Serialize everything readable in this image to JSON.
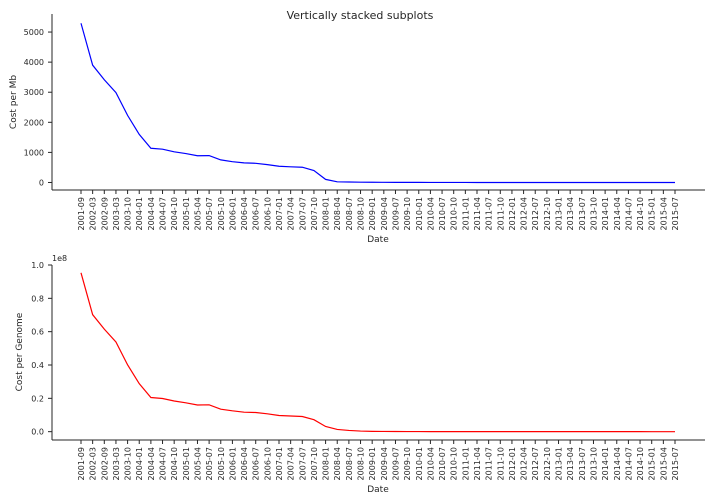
{
  "figure": {
    "title": "Vertically stacked subplots"
  },
  "chart_data": [
    {
      "type": "line",
      "xlabel": "Date",
      "ylabel": "Cost per Mb",
      "ylim": [
        -250,
        5600
      ],
      "yticks": [
        0,
        1000,
        2000,
        3000,
        4000,
        5000
      ],
      "ytick_labels": [
        "0",
        "1000",
        "2000",
        "3000",
        "4000",
        "5000"
      ],
      "color": "#0000ff",
      "grid": false,
      "x": [
        "2001-09",
        "2002-03",
        "2002-09",
        "2003-03",
        "2003-10",
        "2004-01",
        "2004-04",
        "2004-07",
        "2004-10",
        "2005-01",
        "2005-04",
        "2005-07",
        "2005-10",
        "2006-01",
        "2006-04",
        "2006-07",
        "2006-10",
        "2007-01",
        "2007-04",
        "2007-07",
        "2007-10",
        "2008-01",
        "2008-04",
        "2008-07",
        "2008-10",
        "2009-01",
        "2009-04",
        "2009-07",
        "2009-10",
        "2010-01",
        "2010-04",
        "2010-07",
        "2010-10",
        "2011-01",
        "2011-04",
        "2011-07",
        "2011-10",
        "2012-01",
        "2012-04",
        "2012-07",
        "2012-10",
        "2013-01",
        "2013-04",
        "2013-07",
        "2013-10",
        "2014-01",
        "2014-04",
        "2014-07",
        "2014-10",
        "2015-01",
        "2015-04",
        "2015-07"
      ],
      "values": [
        5292,
        3899,
        3414,
        2987,
        2230,
        1598,
        1137,
        1107,
        1020,
        961,
        889,
        893,
        751,
        692,
        652,
        637,
        593,
        539,
        520,
        507,
        397,
        103,
        22,
        16,
        10,
        7.4,
        6.0,
        4.3,
        3.0,
        2.6,
        1.6,
        1.2,
        0.9,
        0.5,
        0.4,
        0.2,
        0.1,
        0.09,
        0.09,
        0.08,
        0.07,
        0.07,
        0.06,
        0.06,
        0.06,
        0.05,
        0.05,
        0.05,
        0.05,
        0.02,
        0.02,
        0.02
      ]
    },
    {
      "type": "line",
      "xlabel": "Date",
      "ylabel": "Cost per Genome",
      "ylim": [
        -0.05,
        1.0
      ],
      "scale_label": "1e8",
      "yticks": [
        0.0,
        0.2,
        0.4,
        0.6,
        0.8,
        1.0
      ],
      "ytick_labels": [
        "0.0",
        "0.2",
        "0.4",
        "0.6",
        "0.8",
        "1.0"
      ],
      "color": "#ff0000",
      "grid": false,
      "x": [
        "2001-09",
        "2002-03",
        "2002-09",
        "2003-03",
        "2003-10",
        "2004-01",
        "2004-04",
        "2004-07",
        "2004-10",
        "2005-01",
        "2005-04",
        "2005-07",
        "2005-10",
        "2006-01",
        "2006-04",
        "2006-07",
        "2006-10",
        "2007-01",
        "2007-04",
        "2007-07",
        "2007-10",
        "2008-01",
        "2008-04",
        "2008-07",
        "2008-10",
        "2009-01",
        "2009-04",
        "2009-07",
        "2009-10",
        "2010-01",
        "2010-04",
        "2010-07",
        "2010-10",
        "2011-01",
        "2011-04",
        "2011-07",
        "2011-10",
        "2012-01",
        "2012-04",
        "2012-07",
        "2012-10",
        "2013-01",
        "2013-04",
        "2013-07",
        "2013-10",
        "2014-01",
        "2014-04",
        "2014-07",
        "2014-10",
        "2015-01",
        "2015-04",
        "2015-07"
      ],
      "values": [
        0.953,
        0.702,
        0.615,
        0.538,
        0.401,
        0.288,
        0.205,
        0.199,
        0.184,
        0.173,
        0.16,
        0.161,
        0.135,
        0.125,
        0.117,
        0.115,
        0.107,
        0.097,
        0.094,
        0.091,
        0.072,
        0.031,
        0.0135,
        0.0073,
        0.0035,
        0.0017,
        0.0014,
        0.001,
        0.0007,
        0.0005,
        0.0003,
        0.0002,
        0.0001,
        8e-05,
        6e-05,
        5e-05,
        4e-05,
        3e-05,
        3e-05,
        3e-05,
        3e-05,
        3e-05,
        3e-05,
        3e-05,
        3e-05,
        3e-05,
        3e-05,
        3e-05,
        3e-05,
        1e-05,
        1e-05,
        1e-05
      ]
    }
  ]
}
